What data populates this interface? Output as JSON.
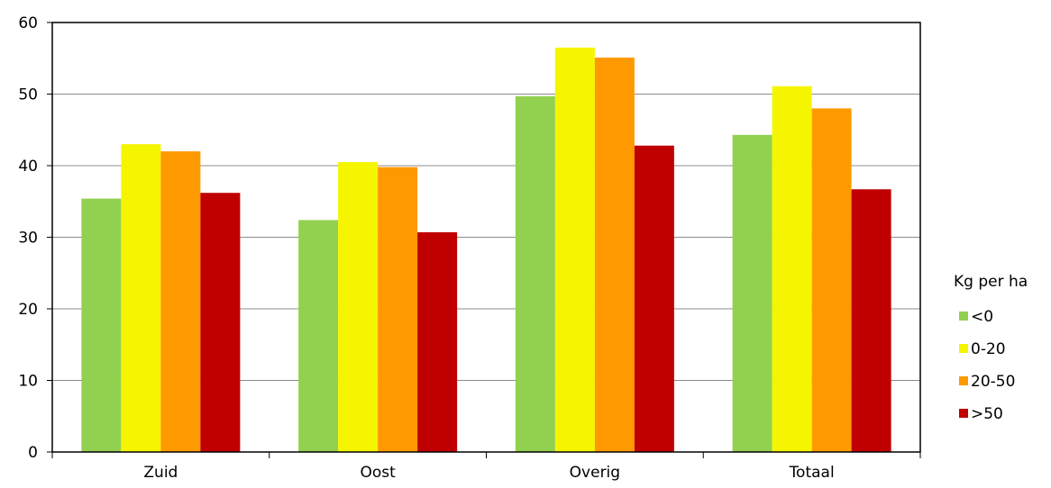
{
  "chart_data": {
    "type": "bar",
    "categories": [
      "Zuid",
      "Oost",
      "Overig",
      "Totaal"
    ],
    "series": [
      {
        "name": "<0",
        "color": "#92d050",
        "values": [
          35.4,
          32.4,
          49.7,
          44.3
        ]
      },
      {
        "name": "0-20",
        "color": "#f5f500",
        "values": [
          43.0,
          40.5,
          56.5,
          51.1
        ]
      },
      {
        "name": "20-50",
        "color": "#ff9900",
        "values": [
          42.0,
          39.8,
          55.1,
          48.0
        ]
      },
      {
        "name": ">50",
        "color": "#c00000",
        "values": [
          36.2,
          30.7,
          42.8,
          36.7
        ]
      }
    ],
    "ylim": [
      0,
      60
    ],
    "yticks": [
      "0",
      "10",
      "20",
      "30",
      "40",
      "50",
      "60"
    ],
    "grid": true,
    "legend_title": "Kg per ha",
    "legend_position": "right",
    "xlabel": "",
    "ylabel": ""
  }
}
